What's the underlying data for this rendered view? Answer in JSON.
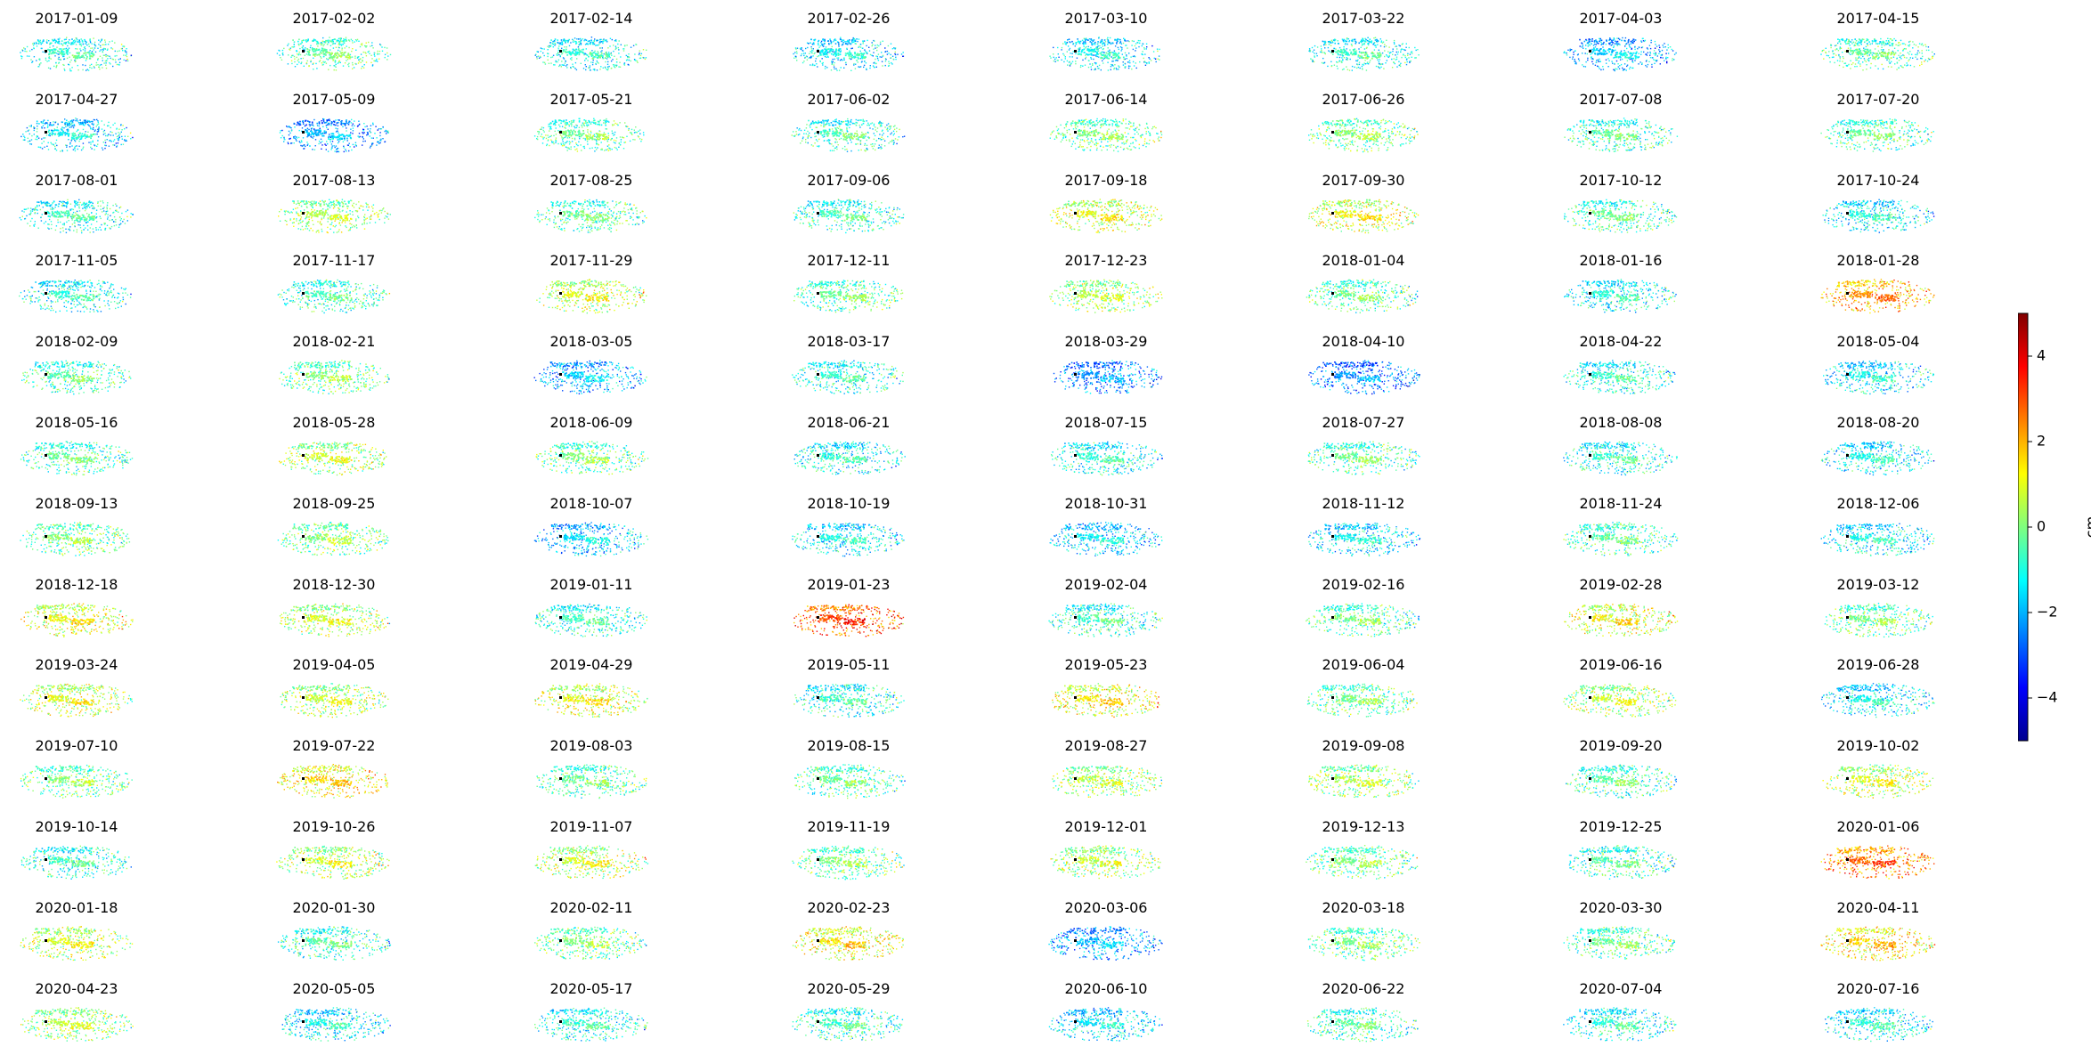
{
  "chart_data": {
    "type": "heatmap",
    "layout": "small-multiples grid of interferogram displacement maps",
    "grid": {
      "rows": 13,
      "cols": 8
    },
    "panel_axes": "off",
    "panels": [
      {
        "title": "2017-01-09",
        "mean_cm": -1.0
      },
      {
        "title": "2017-02-02",
        "mean_cm": -0.5
      },
      {
        "title": "2017-02-14",
        "mean_cm": -1.2
      },
      {
        "title": "2017-02-26",
        "mean_cm": -1.5
      },
      {
        "title": "2017-03-10",
        "mean_cm": -1.4
      },
      {
        "title": "2017-03-22",
        "mean_cm": -1.0
      },
      {
        "title": "2017-04-03",
        "mean_cm": -2.0
      },
      {
        "title": "2017-04-15",
        "mean_cm": -0.6
      },
      {
        "title": "2017-04-27",
        "mean_cm": -1.6
      },
      {
        "title": "2017-05-09",
        "mean_cm": -2.2
      },
      {
        "title": "2017-05-21",
        "mean_cm": -0.4
      },
      {
        "title": "2017-06-02",
        "mean_cm": -0.8
      },
      {
        "title": "2017-06-14",
        "mean_cm": -0.3
      },
      {
        "title": "2017-06-26",
        "mean_cm": -0.2
      },
      {
        "title": "2017-07-08",
        "mean_cm": -0.7
      },
      {
        "title": "2017-07-20",
        "mean_cm": -0.5
      },
      {
        "title": "2017-08-01",
        "mean_cm": -1.0
      },
      {
        "title": "2017-08-13",
        "mean_cm": 0.2
      },
      {
        "title": "2017-08-25",
        "mean_cm": -0.6
      },
      {
        "title": "2017-09-06",
        "mean_cm": -0.9
      },
      {
        "title": "2017-09-18",
        "mean_cm": 0.8
      },
      {
        "title": "2017-09-30",
        "mean_cm": 0.9
      },
      {
        "title": "2017-10-12",
        "mean_cm": -0.6
      },
      {
        "title": "2017-10-24",
        "mean_cm": -1.3
      },
      {
        "title": "2017-11-05",
        "mean_cm": -1.1
      },
      {
        "title": "2017-11-17",
        "mean_cm": -0.8
      },
      {
        "title": "2017-11-29",
        "mean_cm": 0.6
      },
      {
        "title": "2017-12-11",
        "mean_cm": -0.5
      },
      {
        "title": "2017-12-23",
        "mean_cm": 0.3
      },
      {
        "title": "2018-01-04",
        "mean_cm": -0.4
      },
      {
        "title": "2018-01-16",
        "mean_cm": -1.2
      },
      {
        "title": "2018-01-28",
        "mean_cm": 2.0
      },
      {
        "title": "2018-02-09",
        "mean_cm": -0.6
      },
      {
        "title": "2018-02-21",
        "mean_cm": -0.2
      },
      {
        "title": "2018-03-05",
        "mean_cm": -2.0
      },
      {
        "title": "2018-03-17",
        "mean_cm": -1.0
      },
      {
        "title": "2018-03-29",
        "mean_cm": -2.5
      },
      {
        "title": "2018-04-10",
        "mean_cm": -2.6
      },
      {
        "title": "2018-04-22",
        "mean_cm": -1.1
      },
      {
        "title": "2018-05-04",
        "mean_cm": -1.4
      },
      {
        "title": "2018-05-16",
        "mean_cm": -0.6
      },
      {
        "title": "2018-05-28",
        "mean_cm": 0.4
      },
      {
        "title": "2018-06-09",
        "mean_cm": -0.3
      },
      {
        "title": "2018-06-21",
        "mean_cm": -1.2
      },
      {
        "title": "2018-07-15",
        "mean_cm": -1.1
      },
      {
        "title": "2018-07-27",
        "mean_cm": -0.5
      },
      {
        "title": "2018-08-08",
        "mean_cm": -1.0
      },
      {
        "title": "2018-08-20",
        "mean_cm": -1.3
      },
      {
        "title": "2018-09-13",
        "mean_cm": -0.2
      },
      {
        "title": "2018-09-25",
        "mean_cm": -0.1
      },
      {
        "title": "2018-10-07",
        "mean_cm": -1.8
      },
      {
        "title": "2018-10-19",
        "mean_cm": -1.4
      },
      {
        "title": "2018-10-31",
        "mean_cm": -1.7
      },
      {
        "title": "2018-11-12",
        "mean_cm": -1.5
      },
      {
        "title": "2018-11-24",
        "mean_cm": -0.6
      },
      {
        "title": "2018-12-06",
        "mean_cm": -1.3
      },
      {
        "title": "2018-12-18",
        "mean_cm": 0.9
      },
      {
        "title": "2018-12-30",
        "mean_cm": 0.5
      },
      {
        "title": "2019-01-11",
        "mean_cm": -0.9
      },
      {
        "title": "2019-01-23",
        "mean_cm": 2.8
      },
      {
        "title": "2019-02-04",
        "mean_cm": -0.9
      },
      {
        "title": "2019-02-16",
        "mean_cm": -0.4
      },
      {
        "title": "2019-02-28",
        "mean_cm": 0.9
      },
      {
        "title": "2019-03-12",
        "mean_cm": -0.3
      },
      {
        "title": "2019-03-24",
        "mean_cm": 0.7
      },
      {
        "title": "2019-04-05",
        "mean_cm": 0.4
      },
      {
        "title": "2019-04-29",
        "mean_cm": 0.8
      },
      {
        "title": "2019-05-11",
        "mean_cm": -1.0
      },
      {
        "title": "2019-05-23",
        "mean_cm": 1.1
      },
      {
        "title": "2019-06-04",
        "mean_cm": -0.4
      },
      {
        "title": "2019-06-16",
        "mean_cm": 0.4
      },
      {
        "title": "2019-06-28",
        "mean_cm": -1.4
      },
      {
        "title": "2019-07-10",
        "mean_cm": -0.2
      },
      {
        "title": "2019-07-22",
        "mean_cm": 1.3
      },
      {
        "title": "2019-08-03",
        "mean_cm": -0.5
      },
      {
        "title": "2019-08-15",
        "mean_cm": -0.4
      },
      {
        "title": "2019-08-27",
        "mean_cm": 0.3
      },
      {
        "title": "2019-09-08",
        "mean_cm": 0.2
      },
      {
        "title": "2019-09-20",
        "mean_cm": -0.6
      },
      {
        "title": "2019-10-02",
        "mean_cm": 0.6
      },
      {
        "title": "2019-10-14",
        "mean_cm": -0.9
      },
      {
        "title": "2019-10-26",
        "mean_cm": 0.5
      },
      {
        "title": "2019-11-07",
        "mean_cm": 0.6
      },
      {
        "title": "2019-11-19",
        "mean_cm": -0.2
      },
      {
        "title": "2019-12-01",
        "mean_cm": 0.4
      },
      {
        "title": "2019-12-13",
        "mean_cm": -0.3
      },
      {
        "title": "2019-12-25",
        "mean_cm": -0.7
      },
      {
        "title": "2020-01-06",
        "mean_cm": 2.5
      },
      {
        "title": "2020-01-18",
        "mean_cm": 0.6
      },
      {
        "title": "2020-01-30",
        "mean_cm": -0.8
      },
      {
        "title": "2020-02-11",
        "mean_cm": -0.2
      },
      {
        "title": "2020-02-23",
        "mean_cm": 1.2
      },
      {
        "title": "2020-03-06",
        "mean_cm": -2.2
      },
      {
        "title": "2020-03-18",
        "mean_cm": -0.3
      },
      {
        "title": "2020-03-30",
        "mean_cm": -0.5
      },
      {
        "title": "2020-04-11",
        "mean_cm": 1.4
      },
      {
        "title": "2020-04-23",
        "mean_cm": 0.3
      },
      {
        "title": "2020-05-05",
        "mean_cm": -1.3
      },
      {
        "title": "2020-05-17",
        "mean_cm": -1.1
      },
      {
        "title": "2020-05-29",
        "mean_cm": -0.9
      },
      {
        "title": "2020-06-10",
        "mean_cm": -1.6
      },
      {
        "title": "2020-06-22",
        "mean_cm": -0.7
      },
      {
        "title": "2020-07-04",
        "mean_cm": -1.1
      },
      {
        "title": "2020-07-16",
        "mean_cm": -1.2
      }
    ],
    "colorbar": {
      "colormap": "jet",
      "label": "cm",
      "range": [
        -5,
        5
      ],
      "ticks": [
        4,
        2,
        0,
        -2,
        -4
      ],
      "tick_labels": [
        "4",
        "2",
        "0",
        "−2",
        "−4"
      ]
    }
  }
}
